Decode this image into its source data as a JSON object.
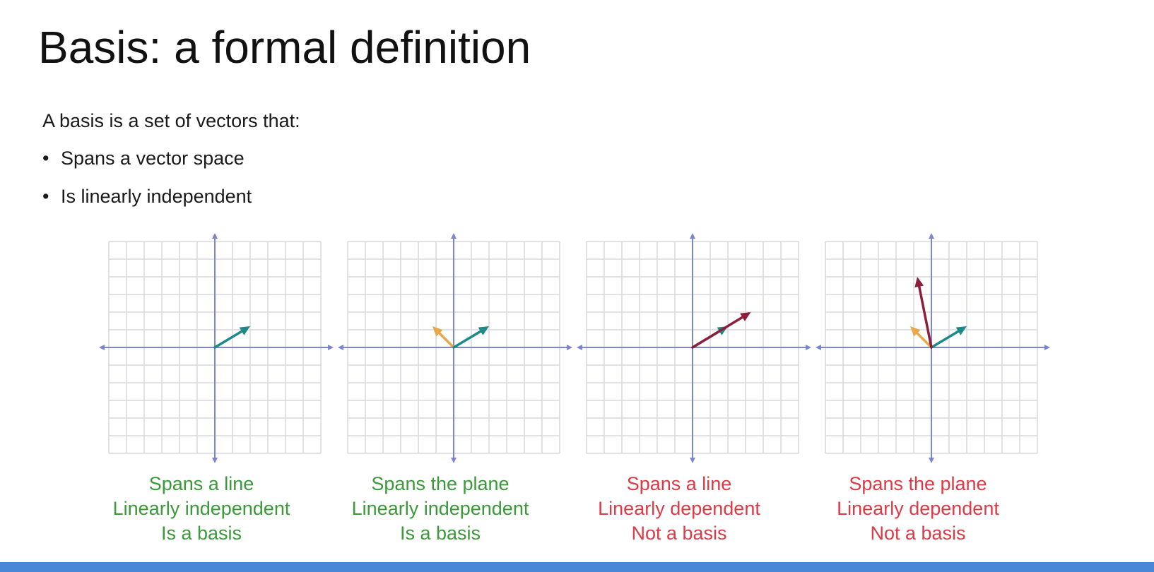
{
  "slide": {
    "title": "Basis: a formal definition",
    "intro": "A basis is a set of vectors that:",
    "bullets": [
      "Spans a vector space",
      "Is linearly independent"
    ]
  },
  "colors": {
    "grid": "#d9d9de",
    "axes": "#7b86cf",
    "teal": "#1d8a87",
    "orange": "#eaa64a",
    "maroon": "#8e1f3b",
    "good": "#3a9a3a",
    "bad": "#dd3a45",
    "bar": "#4a87d6"
  },
  "panels": [
    {
      "caption": [
        "Spans a line",
        "Linearly independent",
        "Is a basis"
      ],
      "status": "good",
      "vectors": [
        {
          "color": "teal",
          "x": 2,
          "y": 1.2
        }
      ]
    },
    {
      "caption": [
        "Spans the plane",
        "Linearly independent",
        "Is a basis"
      ],
      "status": "good",
      "vectors": [
        {
          "color": "teal",
          "x": 2,
          "y": 1.2
        },
        {
          "color": "orange",
          "x": -1.2,
          "y": 1.2
        }
      ]
    },
    {
      "caption": [
        "Spans a line",
        "Linearly dependent",
        "Not a basis"
      ],
      "status": "bad",
      "vectors": [
        {
          "color": "teal",
          "x": 2,
          "y": 1.2
        },
        {
          "color": "maroon",
          "x": 3.3,
          "y": 2.0
        }
      ]
    },
    {
      "caption": [
        "Spans the plane",
        "Linearly dependent",
        "Not a basis"
      ],
      "status": "bad",
      "vectors": [
        {
          "color": "teal",
          "x": 2,
          "y": 1.2
        },
        {
          "color": "orange",
          "x": -1.2,
          "y": 1.2
        },
        {
          "color": "maroon",
          "x": -0.8,
          "y": 4.0
        }
      ]
    }
  ]
}
